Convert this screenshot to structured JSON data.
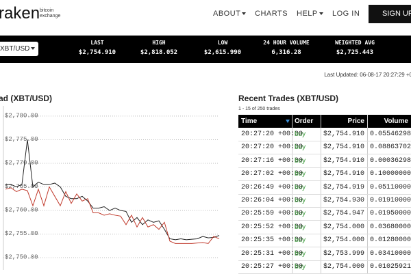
{
  "header": {
    "logo": "raken",
    "logo_sub": [
      "bitcoin",
      "exchange"
    ],
    "nav": [
      "ABOUT",
      "CHARTS",
      "HELP",
      "LOG IN"
    ],
    "signup": "SIGN UP"
  },
  "ticker": {
    "pair": "XBT/USD",
    "stats": [
      {
        "label": "LAST",
        "value": "$2,754.910"
      },
      {
        "label": "HIGH",
        "value": "$2,818.052"
      },
      {
        "label": "LOW",
        "value": "$2,615.990"
      },
      {
        "label": "24 HOUR VOLUME",
        "value": "6,316.28"
      },
      {
        "label": "WEIGHTED AVG",
        "value": "$2,725.443"
      }
    ]
  },
  "last_updated": "Last Updated: 06-08-17 20:27:29 +0",
  "chart_data": {
    "type": "line",
    "title": "ad (XBT/USD)",
    "ylim": [
      2749,
      2781
    ],
    "yticks": [
      {
        "value": 2780,
        "label": "$2,780.00"
      },
      {
        "value": 2775,
        "label": "$2,775.00"
      },
      {
        "value": 2770,
        "label": "$2,770.00"
      },
      {
        "value": 2765,
        "label": "$2,765.00"
      },
      {
        "value": 2760,
        "label": "$2,760.00"
      },
      {
        "value": 2755,
        "label": "$2,755.00"
      },
      {
        "value": 2750,
        "label": "$2,750.00"
      }
    ],
    "grid": true,
    "series": [
      {
        "color": "#222222",
        "values": [
          2765.5,
          2765.5,
          2765,
          2765.5,
          2775,
          2765,
          2766,
          2765.5,
          2765.5,
          2765.8,
          2765,
          2763,
          2762.5,
          2762.5,
          2763,
          2762,
          2760.5,
          2760.5,
          2760.8,
          2760,
          2760.5,
          2760,
          2759.8,
          2757.5,
          2758.5,
          2757,
          2758,
          2757.5,
          2757.8,
          2756,
          2754,
          2753.8,
          2754,
          2753.8,
          2753.9,
          2754,
          2754.5,
          2754.2,
          2754.3,
          2754.7
        ]
      },
      {
        "color": "#c0392b",
        "values": [
          2764.5,
          2764.8,
          2764,
          2764.5,
          2764.2,
          2761,
          2764.5,
          2761,
          2765,
          2763,
          2761,
          2764,
          2761.5,
          2763.5,
          2762,
          2762.5,
          2759.5,
          2759.5,
          2759,
          2759.3,
          2759,
          2758.8,
          2757,
          2759,
          2756.5,
          2758.5,
          2756.5,
          2757,
          2756,
          2757.5,
          2753.5,
          2753,
          2753,
          2753,
          2753,
          2753.1,
          2753.2,
          2753,
          2754.5,
          2754
        ]
      }
    ]
  },
  "trades": {
    "title": "Recent Trades (XBT/USD)",
    "count": "1 - 15 of 250 trades",
    "columns": [
      "Time",
      "Order",
      "Price",
      "Volume"
    ],
    "rows": [
      [
        "20:27:20 +00:00",
        "buy",
        "$2,754.910",
        "0.05546298"
      ],
      [
        "20:27:20 +00:00",
        "buy",
        "$2,754.910",
        "0.08863702"
      ],
      [
        "20:27:16 +00:00",
        "buy",
        "$2,754.910",
        "0.00036298"
      ],
      [
        "20:27:02 +00:00",
        "buy",
        "$2,754.910",
        "0.10000000"
      ],
      [
        "20:26:49 +00:00",
        "buy",
        "$2,754.919",
        "0.05110000"
      ],
      [
        "20:26:04 +00:00",
        "buy",
        "$2,754.930",
        "0.01910000"
      ],
      [
        "20:25:59 +00:00",
        "buy",
        "$2,754.947",
        "0.01950000"
      ],
      [
        "20:25:52 +00:00",
        "buy",
        "$2,754.000",
        "0.03680000"
      ],
      [
        "20:25:35 +00:00",
        "buy",
        "$2,754.000",
        "0.01280000"
      ],
      [
        "20:25:31 +00:00",
        "buy",
        "$2,753.999",
        "0.03410000"
      ],
      [
        "20:25:27 +00:00",
        "buy",
        "$2,754.000",
        "0.01025921"
      ]
    ]
  }
}
